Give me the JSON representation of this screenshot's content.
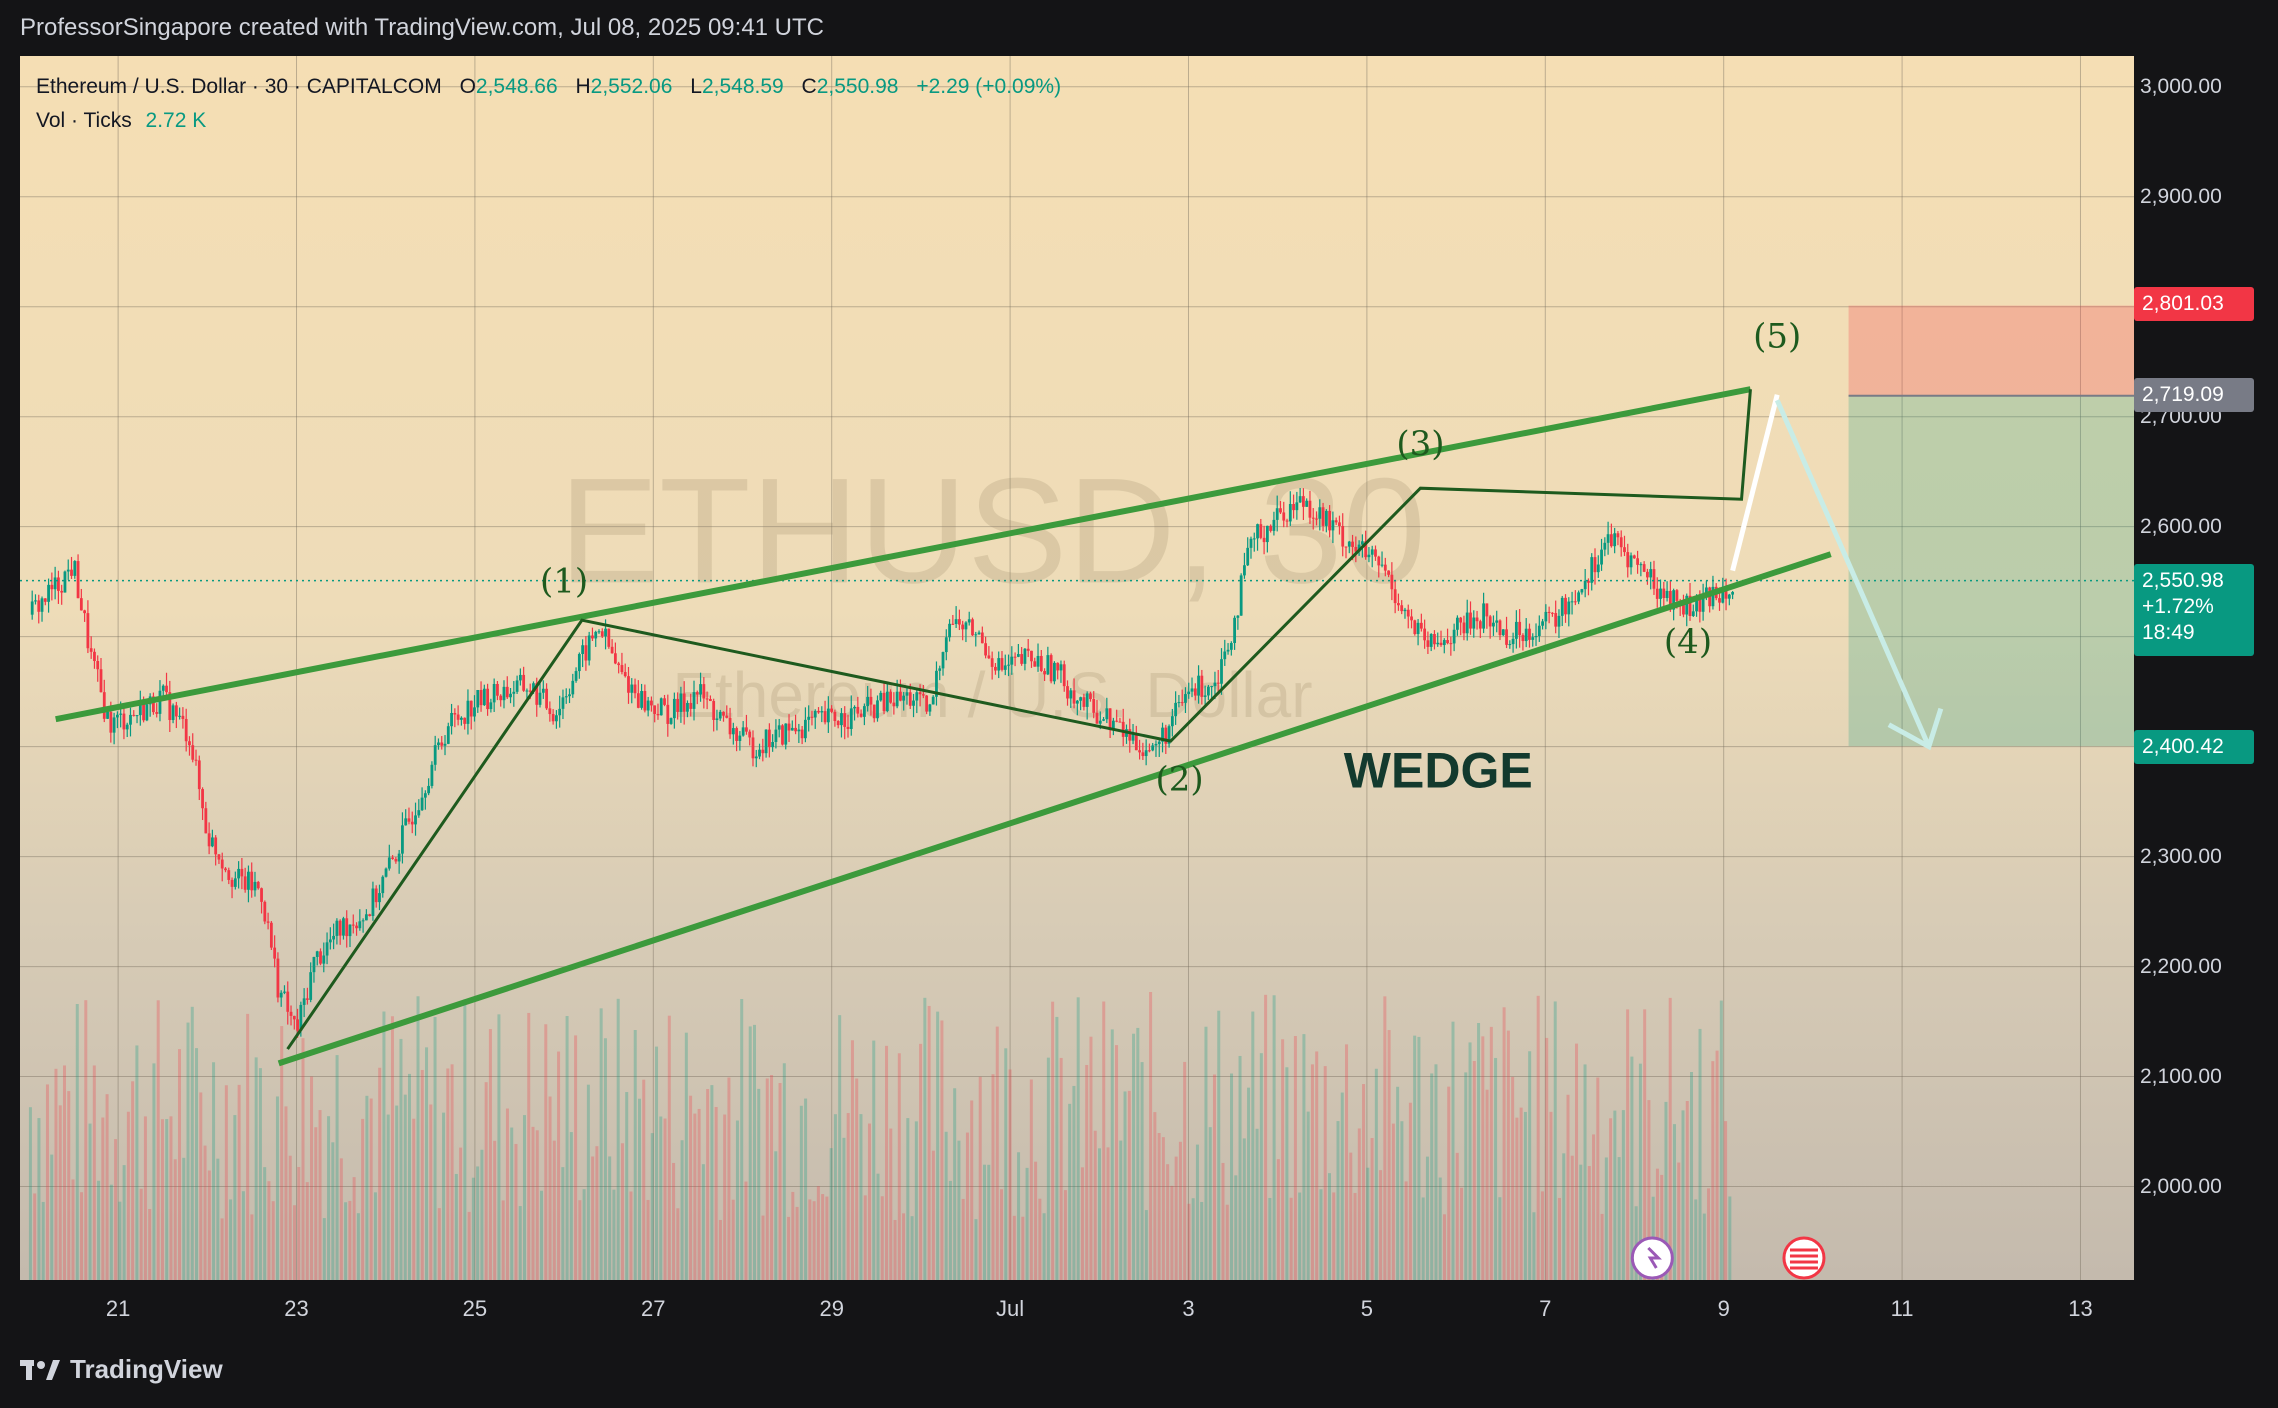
{
  "header": {
    "credit": "ProfessorSingapore created with TradingView.com, Jul 08, 2025 09:41 UTC"
  },
  "legend": {
    "symbol": "Ethereum / U.S. Dollar · 30 · CAPITALCOM",
    "o_label": "O",
    "o": "2,548.66",
    "h_label": "H",
    "h": "2,552.06",
    "l_label": "L",
    "l": "2,548.59",
    "c_label": "C",
    "c": "2,550.98",
    "change": "+2.29 (+0.09%)",
    "vol_label": "Vol · Ticks",
    "vol": "2.72 K"
  },
  "watermark": {
    "ticker": "ETHUSD, 30",
    "name": "Ethereum / U.S. Dollar"
  },
  "annotations": {
    "wave1": "(1)",
    "wave2": "(2)",
    "wave3": "(3)",
    "wave4": "(4)",
    "wave5": "(5)",
    "pattern": "WEDGE"
  },
  "price_tags": {
    "stop": "2,801.03",
    "entry": "2,719.09",
    "current": "2,550.98",
    "current_change": "+1.72%",
    "countdown": "18:49",
    "target": "2,400.42"
  },
  "branding": {
    "name": "TradingView"
  },
  "colors": {
    "stop": "#f23645",
    "entry": "#787b86",
    "current": "#089981",
    "target": "#089981",
    "wedge": "#3c9a3c",
    "wave": "#1e5a1e"
  },
  "chart_data": {
    "type": "candlestick",
    "title": "Ethereum / U.S. Dollar · 30 · CAPITALCOM",
    "y_axis": {
      "min": 1915,
      "max": 3028,
      "ticks": [
        "3,000.00",
        "2,900.00",
        "2,800.00",
        "2,700.00",
        "2,600.00",
        "2,500.00",
        "2,400.00",
        "2,300.00",
        "2,200.00",
        "2,100.00",
        "2,000.00"
      ],
      "tick_values": [
        3000,
        2900,
        2800,
        2700,
        2600,
        2500,
        2400,
        2300,
        2200,
        2100,
        2000
      ]
    },
    "x_axis": {
      "ticks": [
        "21",
        "23",
        "25",
        "27",
        "29",
        "Jul",
        "3",
        "5",
        "7",
        "9",
        "11",
        "13"
      ],
      "tick_days": [
        21,
        23,
        25,
        27,
        29,
        31,
        33,
        35,
        37,
        39,
        41,
        43
      ],
      "min_day": 19.9,
      "max_day": 43.6
    },
    "price_path": [
      [
        20.0,
        2520
      ],
      [
        20.3,
        2545
      ],
      [
        20.5,
        2565
      ],
      [
        20.7,
        2480
      ],
      [
        20.9,
        2420
      ],
      [
        21.2,
        2430
      ],
      [
        21.5,
        2445
      ],
      [
        21.8,
        2410
      ],
      [
        22.0,
        2320
      ],
      [
        22.3,
        2280
      ],
      [
        22.6,
        2270
      ],
      [
        22.8,
        2180
      ],
      [
        23.0,
        2140
      ],
      [
        23.2,
        2205
      ],
      [
        23.5,
        2235
      ],
      [
        23.8,
        2250
      ],
      [
        24.1,
        2300
      ],
      [
        24.4,
        2360
      ],
      [
        24.7,
        2420
      ],
      [
        25.0,
        2440
      ],
      [
        25.3,
        2450
      ],
      [
        25.6,
        2455
      ],
      [
        25.9,
        2430
      ],
      [
        26.2,
        2480
      ],
      [
        26.4,
        2510
      ],
      [
        26.6,
        2470
      ],
      [
        26.9,
        2440
      ],
      [
        27.2,
        2430
      ],
      [
        27.5,
        2450
      ],
      [
        27.8,
        2420
      ],
      [
        28.1,
        2400
      ],
      [
        28.4,
        2410
      ],
      [
        28.7,
        2420
      ],
      [
        29.0,
        2425
      ],
      [
        29.3,
        2430
      ],
      [
        29.6,
        2440
      ],
      [
        29.9,
        2445
      ],
      [
        30.1,
        2430
      ],
      [
        30.3,
        2515
      ],
      [
        30.6,
        2505
      ],
      [
        30.9,
        2470
      ],
      [
        31.2,
        2480
      ],
      [
        31.5,
        2470
      ],
      [
        31.8,
        2440
      ],
      [
        32.1,
        2425
      ],
      [
        32.4,
        2405
      ],
      [
        32.6,
        2395
      ],
      [
        32.8,
        2420
      ],
      [
        33.0,
        2450
      ],
      [
        33.3,
        2460
      ],
      [
        33.5,
        2510
      ],
      [
        33.7,
        2585
      ],
      [
        34.0,
        2610
      ],
      [
        34.3,
        2625
      ],
      [
        34.6,
        2600
      ],
      [
        34.9,
        2580
      ],
      [
        35.2,
        2560
      ],
      [
        35.5,
        2510
      ],
      [
        35.7,
        2490
      ],
      [
        36.0,
        2505
      ],
      [
        36.3,
        2520
      ],
      [
        36.6,
        2500
      ],
      [
        36.9,
        2510
      ],
      [
        37.1,
        2515
      ],
      [
        37.3,
        2535
      ],
      [
        37.5,
        2560
      ],
      [
        37.7,
        2590
      ],
      [
        37.9,
        2575
      ],
      [
        38.1,
        2560
      ],
      [
        38.3,
        2540
      ],
      [
        38.5,
        2530
      ],
      [
        38.7,
        2525
      ],
      [
        38.9,
        2540
      ],
      [
        39.1,
        2550
      ]
    ],
    "volume_peak_ticks": "2.72 K",
    "wedge_upper": [
      [
        20.3,
        2425
      ],
      [
        39.3,
        2725
      ]
    ],
    "wedge_lower": [
      [
        22.8,
        2112
      ],
      [
        40.2,
        2575
      ]
    ],
    "wave_path": [
      [
        22.9,
        2125
      ],
      [
        26.2,
        2515
      ],
      [
        32.8,
        2405
      ],
      [
        35.6,
        2635
      ],
      [
        39.2,
        2625
      ],
      [
        39.3,
        2725
      ]
    ],
    "wave_labels": [
      {
        "label": "(1)",
        "day": 26.0,
        "price": 2540
      },
      {
        "label": "(2)",
        "day": 32.9,
        "price": 2360
      },
      {
        "label": "(3)",
        "day": 35.6,
        "price": 2665
      },
      {
        "label": "(4)",
        "day": 38.6,
        "price": 2485
      },
      {
        "label": "(5)",
        "day": 39.6,
        "price": 2763
      }
    ],
    "projection_up": [
      [
        39.1,
        2560
      ],
      [
        39.6,
        2720
      ]
    ],
    "projection_down": [
      [
        39.6,
        2715
      ],
      [
        41.3,
        2400
      ]
    ],
    "position": {
      "start_day": 40.4,
      "end_day": 43.6,
      "stop": 2801.03,
      "entry": 2719.09,
      "target": 2400.42
    },
    "current_price": 2550.98
  }
}
